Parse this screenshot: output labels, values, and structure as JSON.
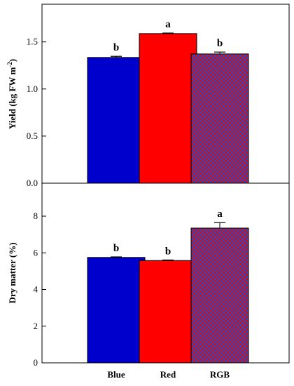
{
  "chart_data": [
    {
      "type": "bar",
      "categories": [
        "Blue",
        "Red",
        "RGB"
      ],
      "values": [
        1.335,
        1.588,
        1.372
      ],
      "errors": [
        0.012,
        0.006,
        0.02
      ],
      "significance": [
        "b",
        "a",
        "b"
      ],
      "ylabel": "Yield (kg FW m",
      "ylabel_sup": "-2",
      "ylabel_end": ")",
      "ylim": [
        0,
        1.9
      ],
      "yticks": [
        "0.0",
        "0.5",
        "1.0",
        "1.5"
      ],
      "ytick_values": [
        0,
        0.5,
        1.0,
        1.5
      ]
    },
    {
      "type": "bar",
      "categories": [
        "Blue",
        "Red",
        "RGB"
      ],
      "values": [
        5.75,
        5.58,
        7.35
      ],
      "errors": [
        0.03,
        0.03,
        0.3
      ],
      "significance": [
        "b",
        "b",
        "a"
      ],
      "ylabel": "Dry matter (%)",
      "ylim": [
        0,
        9.8
      ],
      "yticks": [
        "0",
        "2",
        "4",
        "6",
        "8"
      ],
      "ytick_values": [
        0,
        2,
        4,
        6,
        8
      ]
    }
  ],
  "colors": {
    "blue": "#0000cc",
    "red": "#ff0000",
    "rgb_a": "#cc1111",
    "rgb_b": "#3344cc",
    "edge": "#000000"
  }
}
